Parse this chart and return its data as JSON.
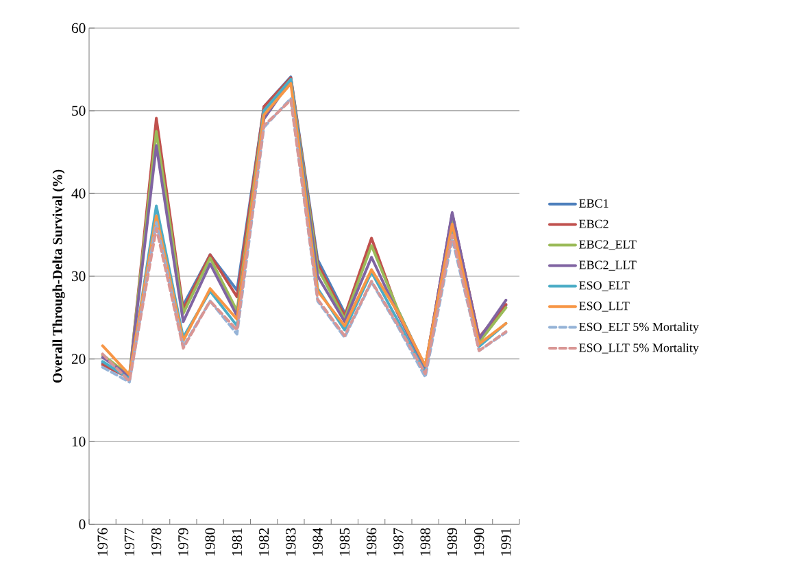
{
  "chart_data": {
    "type": "line",
    "ylabel": "Overall Through-Delta  Survival (%)",
    "categories": [
      "1976",
      "1977",
      "1978",
      "1979",
      "1980",
      "1981",
      "1982",
      "1983",
      "1984",
      "1985",
      "1986",
      "1987",
      "1988",
      "1989",
      "1990",
      "1991"
    ],
    "series": [
      {
        "name": "EBC1",
        "color": "#4f81bd",
        "values": [
          19.5,
          17.8,
          null,
          26.5,
          32.6,
          28.3,
          50.5,
          54.1,
          32.0,
          25.6,
          null,
          25.8,
          19.0,
          37.5,
          22.5,
          26.5
        ]
      },
      {
        "name": "EBC2",
        "color": "#c0504d",
        "values": [
          19.3,
          17.7,
          49.1,
          26.0,
          32.6,
          27.5,
          50.5,
          54.0,
          31.5,
          25.2,
          34.6,
          25.6,
          19.0,
          37.5,
          22.6,
          26.6
        ]
      },
      {
        "name": "EBC2_ELT",
        "color": "#9bbb59",
        "values": [
          20.5,
          18.0,
          47.5,
          25.5,
          32.2,
          25.8,
          50.0,
          53.8,
          31.0,
          24.8,
          33.7,
          25.8,
          18.8,
          37.0,
          22.0,
          26.2
        ]
      },
      {
        "name": "EBC2_LLT",
        "color": "#8064a2",
        "values": [
          20.2,
          17.9,
          45.8,
          24.5,
          31.5,
          25.2,
          49.0,
          53.7,
          30.0,
          24.5,
          32.3,
          25.3,
          18.8,
          37.7,
          22.4,
          27.1
        ]
      },
      {
        "name": "ESO_ELT",
        "color": "#4bacc6",
        "values": [
          19.7,
          17.6,
          38.5,
          22.6,
          28.2,
          24.0,
          50.0,
          53.8,
          28.5,
          23.5,
          30.5,
          24.5,
          18.3,
          36.0,
          21.5,
          24.3
        ]
      },
      {
        "name": "ESO_LLT",
        "color": "#f79646",
        "values": [
          21.6,
          18.1,
          37.3,
          22.2,
          28.5,
          24.8,
          49.5,
          53.3,
          28.2,
          24.0,
          30.8,
          25.5,
          19.2,
          36.3,
          21.8,
          24.3
        ]
      },
      {
        "name": "ESO_ELT 5% Mortality",
        "color": "#95b3d7",
        "line_style": "dashed",
        "values": [
          19.0,
          17.2,
          36.5,
          21.5,
          27.0,
          23.0,
          48.0,
          51.5,
          27.0,
          22.6,
          29.3,
          23.8,
          17.8,
          34.5,
          21.0,
          23.2
        ]
      },
      {
        "name": "ESO_LLT 5% Mortality",
        "color": "#d99694",
        "line_style": "dashed",
        "values": [
          20.6,
          17.3,
          35.8,
          21.3,
          27.0,
          23.5,
          48.2,
          51.3,
          27.2,
          22.8,
          29.4,
          24.0,
          18.2,
          35.0,
          21.0,
          23.3
        ]
      }
    ],
    "ylim": [
      0,
      60
    ],
    "yticks": [
      0,
      10,
      20,
      30,
      40,
      50,
      60
    ],
    "grid": "y",
    "legend": "right",
    "marker": "none",
    "line_style": "solid"
  }
}
